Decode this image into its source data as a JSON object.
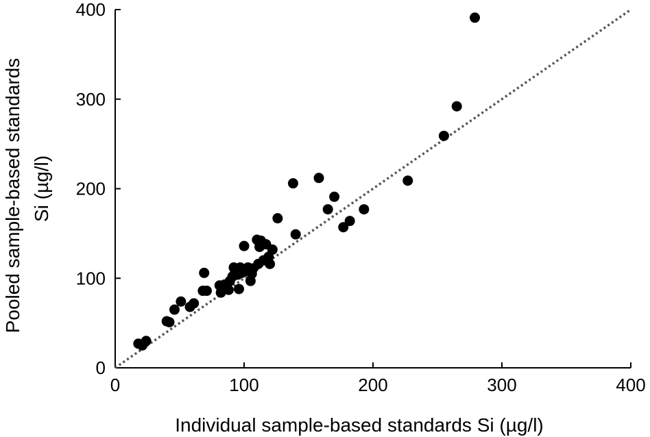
{
  "chart_data": {
    "type": "scatter",
    "title": "",
    "xlabel": "Individual sample-based standards Si (µg/l)",
    "ylabel_lines": [
      "Pooled sample-based standards",
      "Si (µg/l)"
    ],
    "xlim": [
      0,
      400
    ],
    "ylim": [
      0,
      400
    ],
    "xticks": [
      "0",
      "100",
      "200",
      "300",
      "400"
    ],
    "yticks": [
      "0",
      "100",
      "200",
      "300",
      "400"
    ],
    "grid": false,
    "reference_line": {
      "style": "dotted",
      "x": [
        0,
        400
      ],
      "y": [
        0,
        400
      ]
    },
    "colors": {
      "points": "#000000",
      "reference_line": "#555555",
      "axes": "#000000"
    },
    "series": [
      {
        "points": [
          [
            18,
            27
          ],
          [
            21,
            25
          ],
          [
            24,
            30
          ],
          [
            40,
            52
          ],
          [
            42,
            51
          ],
          [
            46,
            65
          ],
          [
            51,
            74
          ],
          [
            58,
            68
          ],
          [
            61,
            72
          ],
          [
            68,
            86
          ],
          [
            69,
            106
          ],
          [
            71,
            86
          ],
          [
            81,
            92
          ],
          [
            82,
            84
          ],
          [
            85,
            93
          ],
          [
            88,
            87
          ],
          [
            89,
            97
          ],
          [
            91,
            102
          ],
          [
            92,
            112
          ],
          [
            93,
            107
          ],
          [
            95,
            104
          ],
          [
            96,
            88
          ],
          [
            97,
            112
          ],
          [
            98,
            106
          ],
          [
            100,
            136
          ],
          [
            101,
            108
          ],
          [
            103,
            112
          ],
          [
            105,
            97
          ],
          [
            106,
            105
          ],
          [
            107,
            111
          ],
          [
            110,
            143
          ],
          [
            111,
            116
          ],
          [
            112,
            135
          ],
          [
            113,
            142
          ],
          [
            115,
            120
          ],
          [
            117,
            138
          ],
          [
            119,
            124
          ],
          [
            120,
            116
          ],
          [
            122,
            132
          ],
          [
            126,
            167
          ],
          [
            138,
            206
          ],
          [
            140,
            149
          ],
          [
            158,
            212
          ],
          [
            165,
            177
          ],
          [
            170,
            191
          ],
          [
            177,
            157
          ],
          [
            182,
            164
          ],
          [
            193,
            177
          ],
          [
            227,
            209
          ],
          [
            255,
            259
          ],
          [
            265,
            292
          ],
          [
            279,
            391
          ]
        ]
      }
    ]
  }
}
